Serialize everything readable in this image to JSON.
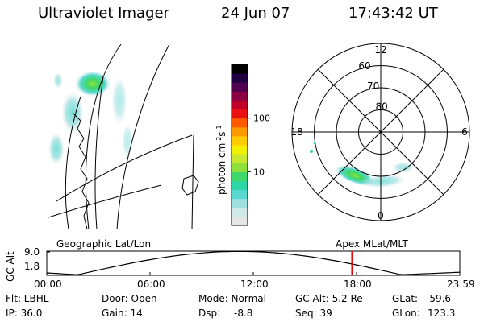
{
  "header": {
    "instrument": "Ultraviolet Imager",
    "date": "24 Jun 07",
    "time": "17:43:42 UT"
  },
  "colorbar": {
    "label": "photon cm",
    "label_sup1": "-2",
    "label_mid": "s",
    "label_sup2": "-1",
    "ticks": [
      {
        "text": "100",
        "value": 100
      },
      {
        "text": "10",
        "value": 10
      }
    ],
    "colors": [
      "#e6e6e6",
      "#cfe9e9",
      "#9fe0e0",
      "#59d8d0",
      "#2fd6a8",
      "#3fd86a",
      "#8fe03a",
      "#c8e830",
      "#f0f000",
      "#ffcc00",
      "#ff9900",
      "#ff5a00",
      "#e81010",
      "#c0002a",
      "#8a0040",
      "#500050",
      "#200040",
      "#000000"
    ]
  },
  "polar": {
    "mlt_labels": [
      "12",
      "18",
      "6",
      "0"
    ],
    "lat_labels": [
      "60",
      "70",
      "80"
    ],
    "mlt_values": [
      12,
      18,
      6,
      0
    ],
    "lat_values": [
      60,
      70,
      80
    ]
  },
  "projections": {
    "left": "Geographic Lat/Lon",
    "right": "Apex MLat/MLT"
  },
  "altitude_plot": {
    "ylabel": "GC Alt",
    "yticks": [
      "9.0",
      "1.8"
    ],
    "ytick_values": [
      9.0,
      1.8
    ],
    "xticks": [
      "00:00",
      "06:00",
      "12:00",
      "18:00",
      "23:59"
    ],
    "current_time_hours": 17.73,
    "line_color": "#000000",
    "marker_color": "#e00000"
  },
  "info": {
    "flt": "Flt: LBHL",
    "ip": "IP: 36.0",
    "door": "Door: Open",
    "gain": "Gain: 14",
    "mode": "Mode: Normal",
    "dsp_label": "Dsp:",
    "dsp_value": "-8.8",
    "gcalt": "GC Alt: 5.2 Re",
    "seq": "Seq: 39",
    "glat_label": "GLat:",
    "glat_value": "-59.6",
    "glon_label": "GLon:",
    "glon_value": "123.3"
  }
}
